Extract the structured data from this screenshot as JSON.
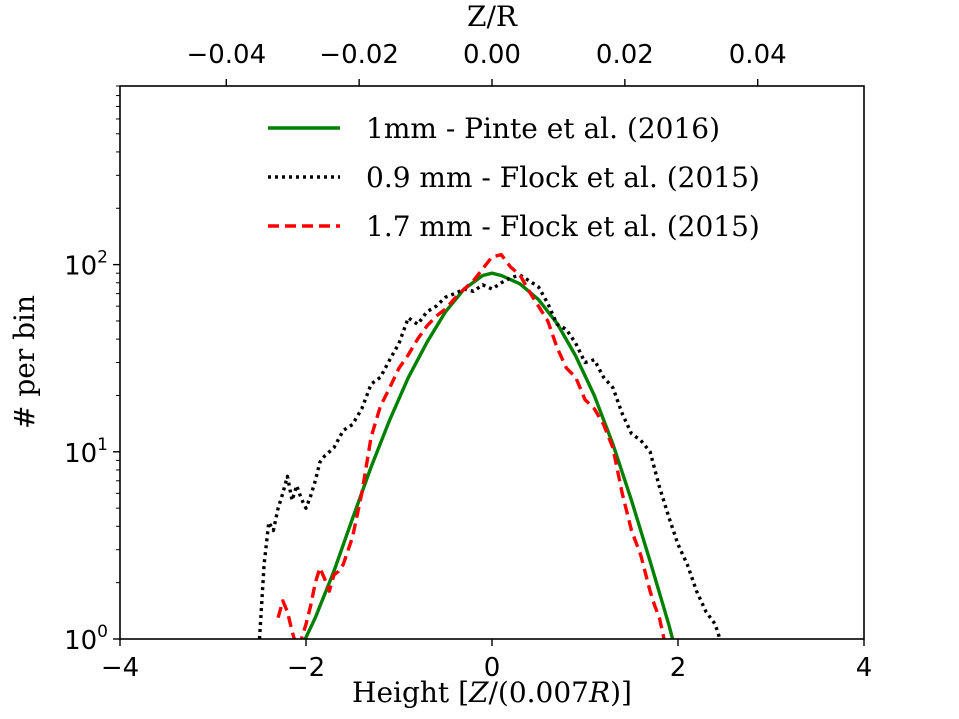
{
  "chart_data": {
    "type": "line",
    "title": "",
    "xlabel": "Height [Z/(0.007R)]",
    "xlabel_parts": {
      "before": "Height [",
      "z": "Z",
      "slash": "/(0.007",
      "r": "R",
      "after": ")]"
    },
    "ylabel": "# per bin",
    "top_xlabel": "Z/R",
    "xlim": [
      -4,
      4
    ],
    "ylim": [
      1,
      900
    ],
    "yscale": "log",
    "top_xlim": [
      -0.056,
      0.056
    ],
    "x_ticks": [
      {
        "value": -4,
        "label": "−4"
      },
      {
        "value": -2,
        "label": "−2"
      },
      {
        "value": 0,
        "label": "0"
      },
      {
        "value": 2,
        "label": "2"
      },
      {
        "value": 4,
        "label": "4"
      }
    ],
    "top_ticks": [
      {
        "value": -0.04,
        "label": "−0.04"
      },
      {
        "value": -0.02,
        "label": "−0.02"
      },
      {
        "value": 0.0,
        "label": "0.00"
      },
      {
        "value": 0.02,
        "label": "0.02"
      },
      {
        "value": 0.04,
        "label": "0.04"
      }
    ],
    "y_ticks": [
      {
        "value": 1,
        "base": "10",
        "exp": "0"
      },
      {
        "value": 10,
        "base": "10",
        "exp": "1"
      },
      {
        "value": 100,
        "base": "10",
        "exp": "2"
      }
    ],
    "grid": false,
    "legend_position": "top-right",
    "series": [
      {
        "name": "1mm - Pinte et al. (2016)",
        "color": "#008000",
        "style": "solid",
        "x": [
          -2.1,
          -1.9,
          -1.7,
          -1.5,
          -1.3,
          -1.1,
          -0.9,
          -0.7,
          -0.5,
          -0.3,
          -0.1,
          0.0,
          0.1,
          0.3,
          0.5,
          0.7,
          0.9,
          1.1,
          1.3,
          1.5,
          1.7,
          1.9,
          2.1
        ],
        "y": [
          0.8,
          1.3,
          2.3,
          4.4,
          8.3,
          14.8,
          24.9,
          38.4,
          56.0,
          74.0,
          87.5,
          90.0,
          87.5,
          79.0,
          65.0,
          48.5,
          32.5,
          20.0,
          11.0,
          5.5,
          2.6,
          1.2,
          0.5
        ]
      },
      {
        "name": "0.9 mm - Flock et al. (2015)",
        "color": "#000000",
        "style": "dotted",
        "x": [
          -2.5,
          -2.45,
          -2.4,
          -2.35,
          -2.3,
          -2.25,
          -2.2,
          -2.15,
          -2.1,
          -2.05,
          -2.0,
          -1.95,
          -1.9,
          -1.85,
          -1.8,
          -1.7,
          -1.6,
          -1.5,
          -1.4,
          -1.3,
          -1.2,
          -1.1,
          -1.0,
          -0.9,
          -0.8,
          -0.7,
          -0.6,
          -0.5,
          -0.4,
          -0.3,
          -0.2,
          -0.1,
          0.0,
          0.1,
          0.2,
          0.3,
          0.4,
          0.5,
          0.6,
          0.7,
          0.8,
          0.9,
          1.0,
          1.1,
          1.2,
          1.3,
          1.4,
          1.5,
          1.6,
          1.7,
          1.8,
          1.9,
          2.0,
          2.1,
          2.2,
          2.3,
          2.4,
          2.45
        ],
        "y": [
          1.0,
          2.5,
          4.2,
          3.8,
          5.0,
          6.0,
          7.4,
          5.5,
          6.6,
          5.6,
          5.0,
          5.8,
          7.0,
          8.8,
          9.5,
          10.5,
          13.0,
          14.0,
          17.0,
          23.0,
          25.0,
          31.0,
          38.0,
          52.0,
          48.0,
          56.0,
          60.0,
          67.0,
          70.0,
          74.0,
          72.0,
          78.0,
          74.0,
          80.0,
          85.0,
          88.0,
          82.0,
          76.0,
          62.0,
          48.0,
          45.0,
          38.0,
          30.0,
          31.0,
          25.0,
          22.0,
          16.0,
          12.5,
          11.5,
          10.0,
          6.5,
          4.5,
          3.2,
          2.5,
          1.8,
          1.4,
          1.2,
          1.0
        ]
      },
      {
        "name": "1.7 mm - Flock et al. (2015)",
        "color": "#ff0000",
        "style": "dashed",
        "x": [
          -2.3,
          -2.25,
          -2.2,
          -2.15,
          -2.1,
          -2.05,
          -2.0,
          -1.95,
          -1.9,
          -1.85,
          -1.8,
          -1.75,
          -1.7,
          -1.65,
          -1.6,
          -1.5,
          -1.4,
          -1.3,
          -1.2,
          -1.1,
          -1.0,
          -0.9,
          -0.8,
          -0.7,
          -0.6,
          -0.5,
          -0.4,
          -0.3,
          -0.2,
          -0.1,
          0.0,
          0.1,
          0.2,
          0.3,
          0.4,
          0.5,
          0.6,
          0.7,
          0.8,
          0.9,
          1.0,
          1.1,
          1.2,
          1.3,
          1.4,
          1.5,
          1.6,
          1.7,
          1.75,
          1.8,
          1.85
        ],
        "y": [
          1.3,
          1.6,
          1.4,
          1.1,
          0.9,
          1.0,
          1.2,
          1.5,
          2.0,
          2.4,
          2.1,
          1.8,
          2.2,
          2.3,
          2.5,
          3.5,
          6.0,
          12.0,
          17.5,
          22.0,
          28.0,
          33.0,
          40.0,
          47.0,
          53.0,
          58.0,
          66.0,
          74.0,
          82.0,
          95.0,
          110.0,
          113.0,
          97.0,
          88.0,
          72.0,
          60.0,
          50.0,
          36.0,
          28.0,
          25.0,
          19.0,
          17.0,
          14.0,
          10.5,
          6.0,
          3.8,
          2.8,
          1.8,
          1.5,
          1.3,
          1.0
        ]
      }
    ]
  }
}
